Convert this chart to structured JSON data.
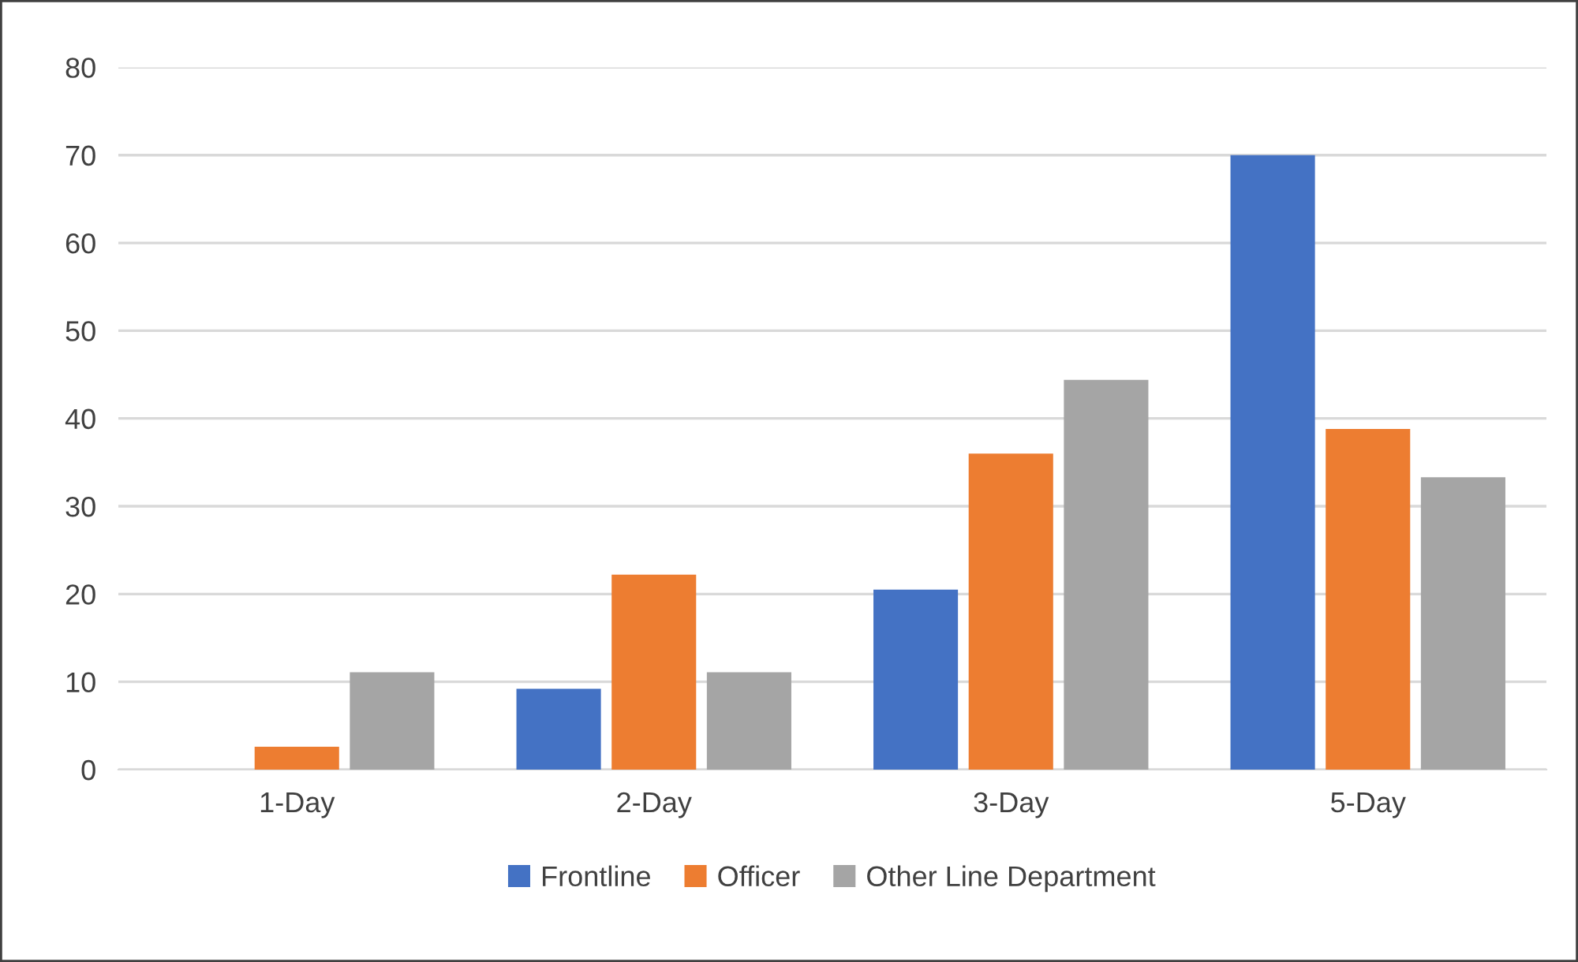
{
  "chart_data": {
    "type": "bar",
    "categories": [
      "1-Day",
      "2-Day",
      "3-Day",
      "5-Day"
    ],
    "series": [
      {
        "name": "Frontline",
        "color": "#4472c4",
        "values": [
          null,
          9.2,
          20.5,
          70
        ]
      },
      {
        "name": "Officer",
        "color": "#ed7d31",
        "values": [
          2.6,
          22.2,
          36.0,
          38.8
        ]
      },
      {
        "name": "Other Line Department",
        "color": "#a5a5a5",
        "values": [
          11.1,
          11.1,
          44.4,
          33.3
        ]
      }
    ],
    "ylim": [
      0,
      80
    ],
    "yticks": [
      0,
      10,
      20,
      30,
      40,
      50,
      60,
      70,
      80
    ],
    "grid": "y",
    "legend": "bottom"
  }
}
